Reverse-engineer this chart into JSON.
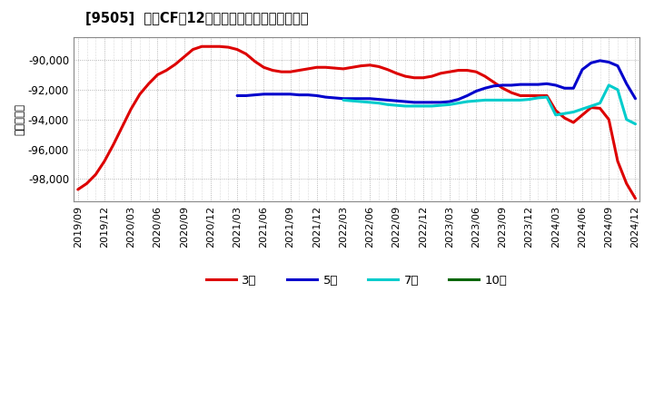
{
  "title": "[9505]  投賄CFだ12か月移動合計の平均値の推移",
  "ylabel": "（百万円）",
  "background_color": "#ffffff",
  "plot_bg_color": "#ffffff",
  "grid_color": "#999999",
  "ylim": [
    -99500,
    -88500
  ],
  "yticks": [
    -98000,
    -96000,
    -94000,
    -92000,
    -90000
  ],
  "series": {
    "3年": {
      "color": "#dd0000",
      "x": [
        0,
        1,
        2,
        3,
        4,
        5,
        6,
        7,
        8,
        9,
        10,
        11,
        12,
        13,
        14,
        15,
        16,
        17,
        18,
        19,
        20,
        21,
        22,
        23,
        24,
        25,
        26,
        27,
        28,
        29,
        30,
        31,
        32,
        33,
        34,
        35,
        36,
        37,
        38,
        39,
        40,
        41,
        42,
        43,
        44,
        45,
        46,
        47,
        48,
        49,
        50,
        51,
        52,
        53,
        54,
        55,
        56,
        57,
        58,
        59,
        60,
        61,
        62,
        63
      ],
      "y": [
        -98700,
        -98300,
        -97700,
        -96800,
        -95700,
        -94500,
        -93300,
        -92300,
        -91600,
        -91000,
        -90700,
        -90300,
        -89800,
        -89300,
        -89100,
        -89100,
        -89100,
        -89150,
        -89300,
        -89600,
        -90100,
        -90500,
        -90700,
        -90800,
        -90800,
        -90700,
        -90600,
        -90500,
        -90500,
        -90550,
        -90600,
        -90500,
        -90400,
        -90350,
        -90450,
        -90650,
        -90900,
        -91100,
        -91200,
        -91200,
        -91100,
        -90900,
        -90800,
        -90700,
        -90700,
        -90800,
        -91100,
        -91500,
        -91900,
        -92200,
        -92400,
        -92400,
        -92400,
        -92400,
        -93400,
        -93900,
        -94200,
        -93700,
        -93200,
        -93250,
        -94000,
        -96800,
        -98300,
        -99300
      ]
    },
    "5年": {
      "color": "#0000cc",
      "x": [
        18,
        19,
        20,
        21,
        22,
        23,
        24,
        25,
        26,
        27,
        28,
        29,
        30,
        31,
        32,
        33,
        34,
        35,
        36,
        37,
        38,
        39,
        40,
        41,
        42,
        43,
        44,
        45,
        46,
        47,
        48,
        49,
        50,
        51,
        52,
        53,
        54,
        55,
        56,
        57,
        58,
        59,
        60,
        61,
        62,
        63
      ],
      "y": [
        -92400,
        -92400,
        -92350,
        -92300,
        -92300,
        -92300,
        -92300,
        -92350,
        -92350,
        -92400,
        -92500,
        -92550,
        -92600,
        -92600,
        -92600,
        -92600,
        -92650,
        -92700,
        -92750,
        -92800,
        -92850,
        -92850,
        -92850,
        -92850,
        -92800,
        -92650,
        -92400,
        -92100,
        -91900,
        -91750,
        -91700,
        -91700,
        -91650,
        -91650,
        -91650,
        -91600,
        -91700,
        -91900,
        -91900,
        -90650,
        -90200,
        -90050,
        -90150,
        -90400,
        -91600,
        -92600
      ]
    },
    "7年": {
      "color": "#00cccc",
      "x": [
        30,
        31,
        32,
        33,
        34,
        35,
        36,
        37,
        38,
        39,
        40,
        41,
        42,
        43,
        44,
        45,
        46,
        47,
        48,
        49,
        50,
        51,
        52,
        53,
        54,
        55,
        56,
        57,
        58,
        59,
        60,
        61,
        62,
        63
      ],
      "y": [
        -92700,
        -92750,
        -92800,
        -92850,
        -92900,
        -93000,
        -93050,
        -93100,
        -93100,
        -93100,
        -93100,
        -93050,
        -93000,
        -92900,
        -92800,
        -92750,
        -92700,
        -92700,
        -92700,
        -92700,
        -92700,
        -92650,
        -92550,
        -92500,
        -93700,
        -93600,
        -93500,
        -93300,
        -93100,
        -92900,
        -91700,
        -92000,
        -94000,
        -94300
      ]
    },
    "10年": {
      "color": "#006600",
      "x": [],
      "y": []
    }
  },
  "x_labels": [
    "2019/09",
    "2019/12",
    "2020/03",
    "2020/06",
    "2020/09",
    "2020/12",
    "2021/03",
    "2021/06",
    "2021/09",
    "2021/12",
    "2022/03",
    "2022/06",
    "2022/09",
    "2022/12",
    "2023/03",
    "2023/06",
    "2023/09",
    "2023/12",
    "2024/03",
    "2024/06",
    "2024/09",
    "2024/12"
  ],
  "x_label_indices": [
    0,
    3,
    6,
    9,
    12,
    15,
    18,
    21,
    24,
    27,
    30,
    33,
    36,
    39,
    42,
    45,
    48,
    51,
    54,
    57,
    60,
    63
  ],
  "legend": [
    {
      "label": "3年",
      "color": "#dd0000"
    },
    {
      "label": "5年",
      "color": "#0000cc"
    },
    {
      "label": "7年",
      "color": "#00cccc"
    },
    {
      "label": "10年",
      "color": "#006600"
    }
  ]
}
